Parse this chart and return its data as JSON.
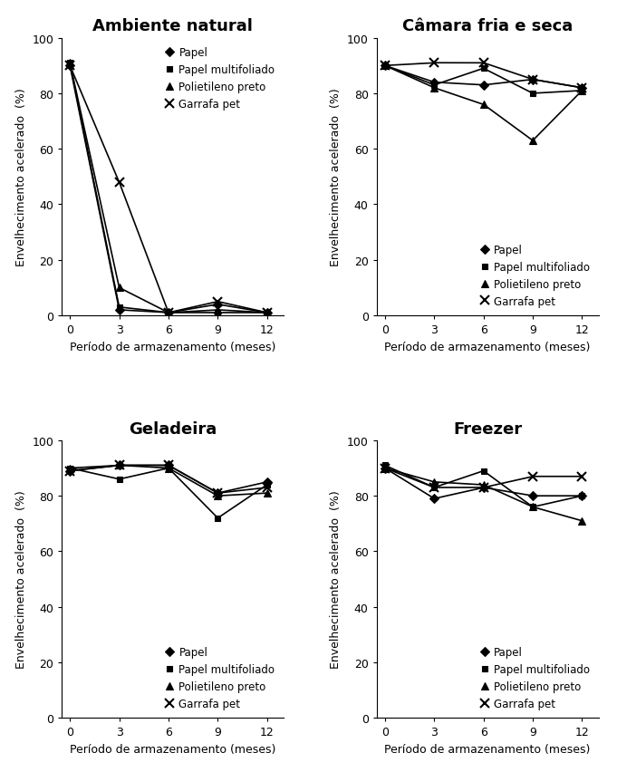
{
  "x_ticks": [
    0,
    3,
    6,
    9,
    12
  ],
  "panels": [
    {
      "title": "Ambiente natural",
      "series": [
        {
          "label": "Papel",
          "marker": "D",
          "y": [
            90,
            2,
            1,
            4,
            1
          ]
        },
        {
          "label": "Papel multifoliado",
          "marker": "s",
          "y": [
            91,
            3,
            1,
            1,
            1
          ]
        },
        {
          "label": "Polietileno preto",
          "marker": "^",
          "y": [
            91,
            10,
            1,
            2,
            1
          ]
        },
        {
          "label": "Garrafa pet",
          "marker": "x",
          "y": [
            90,
            48,
            1,
            5,
            1
          ]
        }
      ],
      "ylim": [
        0,
        100
      ],
      "yticks": [
        0,
        20,
        40,
        60,
        80,
        100
      ],
      "legend_loc": "upper right",
      "legend_bbox": null
    },
    {
      "title": "Câmara fria e seca",
      "series": [
        {
          "label": "Papel",
          "marker": "D",
          "y": [
            90,
            84,
            83,
            85,
            82
          ]
        },
        {
          "label": "Papel multifoliado",
          "marker": "s",
          "y": [
            90,
            83,
            89,
            80,
            81
          ]
        },
        {
          "label": "Polietileno preto",
          "marker": "^",
          "y": [
            90,
            82,
            76,
            63,
            81
          ]
        },
        {
          "label": "Garrafa pet",
          "marker": "x",
          "y": [
            90,
            91,
            91,
            85,
            82
          ]
        }
      ],
      "ylim": [
        0,
        100
      ],
      "yticks": [
        0,
        20,
        40,
        60,
        80,
        100
      ],
      "legend_loc": "lower right",
      "legend_bbox": null
    },
    {
      "title": "Geladeira",
      "series": [
        {
          "label": "Papel",
          "marker": "D",
          "y": [
            89,
            91,
            91,
            81,
            85
          ]
        },
        {
          "label": "Papel multifoliado",
          "marker": "s",
          "y": [
            90,
            86,
            90,
            72,
            84
          ]
        },
        {
          "label": "Polietileno preto",
          "marker": "^",
          "y": [
            90,
            91,
            90,
            80,
            81
          ]
        },
        {
          "label": "Garrafa pet",
          "marker": "x",
          "y": [
            89,
            91,
            91,
            81,
            83
          ]
        }
      ],
      "ylim": [
        0,
        100
      ],
      "yticks": [
        0,
        20,
        40,
        60,
        80,
        100
      ],
      "legend_loc": "lower right",
      "legend_bbox": null
    },
    {
      "title": "Freezer",
      "series": [
        {
          "label": "Papel",
          "marker": "D",
          "y": [
            90,
            79,
            83,
            80,
            80
          ]
        },
        {
          "label": "Papel multifoliado",
          "marker": "s",
          "y": [
            91,
            83,
            89,
            76,
            80
          ]
        },
        {
          "label": "Polietileno preto",
          "marker": "^",
          "y": [
            90,
            85,
            84,
            76,
            71
          ]
        },
        {
          "label": "Garrafa pet",
          "marker": "x",
          "y": [
            90,
            83,
            83,
            87,
            87
          ]
        }
      ],
      "ylim": [
        0,
        100
      ],
      "yticks": [
        0,
        20,
        40,
        60,
        80,
        100
      ],
      "legend_loc": "lower right",
      "legend_bbox": null
    }
  ],
  "xlabel": "Período de armazenamento (meses)",
  "ylabel": "Envelhecimento acelerado  (%)",
  "color": "#000000",
  "linewidth": 1.2,
  "title_fontsize": 13,
  "label_fontsize": 9,
  "tick_fontsize": 9,
  "legend_fontsize": 8.5
}
